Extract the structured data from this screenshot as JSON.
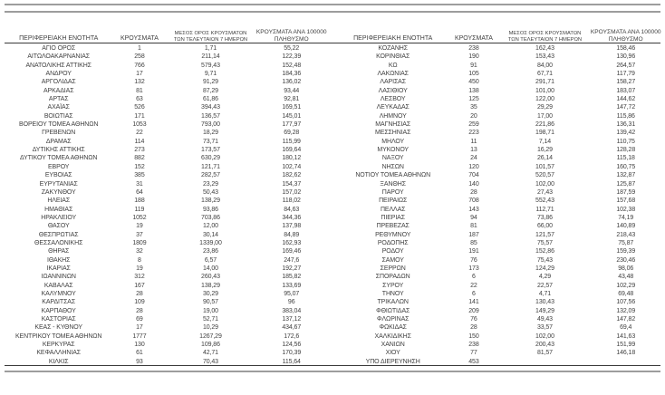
{
  "colors": {
    "text": "#3f3f3f",
    "rule_gray": "#9d9d9d",
    "rule_dark": "#3a3a3a",
    "background": "#ffffff"
  },
  "columns": {
    "region": "ΠΕΡΙΦΕΡΕΙΑΚΗ ΕΝΟΤΗΤΑ",
    "cases": "ΚΡΟΥΣΜΑΤΑ",
    "avg7_line1": "ΜΕΣΟΣ ΟΡΟΣ ΚΡΟΥΣΜΑΤΩΝ",
    "avg7_line2": "ΤΩΝ ΤΕΛΕΥΤΑΙΩΝ 7 ΗΜΕΡΩΝ",
    "per100k_line1": "ΚΡΟΥΣΜΑΤΑ ΑΝΑ 100000",
    "per100k_line2": "ΠΛΗΘΥΣΜΟ"
  },
  "tables": [
    {
      "rows": [
        [
          "ΑΓΙΟ ΟΡΟΣ",
          "1",
          "1,71",
          "55,22"
        ],
        [
          "ΑΙΤΩΛΟΑΚΑΡΝΑΝΙΑΣ",
          "258",
          "211,14",
          "122,39"
        ],
        [
          "ΑΝΑΤΟΛΙΚΗΣ ΑΤΤΙΚΗΣ",
          "766",
          "579,43",
          "152,48"
        ],
        [
          "ΑΝΔΡΟΥ",
          "17",
          "9,71",
          "184,36"
        ],
        [
          "ΑΡΓΟΛΙΔΑΣ",
          "132",
          "91,29",
          "136,02"
        ],
        [
          "ΑΡΚΑΔΙΑΣ",
          "81",
          "87,29",
          "93,44"
        ],
        [
          "ΑΡΤΑΣ",
          "63",
          "61,86",
          "92,81"
        ],
        [
          "ΑΧΑΪΑΣ",
          "526",
          "394,43",
          "169,51"
        ],
        [
          "ΒΟΙΩΤΙΑΣ",
          "171",
          "136,57",
          "145,01"
        ],
        [
          "ΒΟΡΕΙΟΥ ΤΟΜΕΑ ΑΘΗΝΩΝ",
          "1053",
          "793,00",
          "177,97"
        ],
        [
          "ΓΡΕΒΕΝΩΝ",
          "22",
          "18,29",
          "69,28"
        ],
        [
          "ΔΡΑΜΑΣ",
          "114",
          "73,71",
          "115,99"
        ],
        [
          "ΔΥΤΙΚΗΣ ΑΤΤΙΚΗΣ",
          "273",
          "173,57",
          "169,64"
        ],
        [
          "ΔΥΤΙΚΟΥ ΤΟΜΕΑ ΑΘΗΝΩΝ",
          "882",
          "630,29",
          "180,12"
        ],
        [
          "ΕΒΡΟΥ",
          "152",
          "121,71",
          "102,74"
        ],
        [
          "ΕΥΒΟΙΑΣ",
          "385",
          "282,57",
          "182,62"
        ],
        [
          "ΕΥΡΥΤΑΝΙΑΣ",
          "31",
          "23,29",
          "154,37"
        ],
        [
          "ΖΑΚΥΝΘΟΥ",
          "64",
          "50,43",
          "157,02"
        ],
        [
          "ΗΛΕΙΑΣ",
          "188",
          "138,29",
          "118,02"
        ],
        [
          "ΗΜΑΘΙΑΣ",
          "119",
          "93,86",
          "84,63"
        ],
        [
          "ΗΡΑΚΛΕΙΟΥ",
          "1052",
          "703,86",
          "344,36"
        ],
        [
          "ΘΑΣΟΥ",
          "19",
          "12,00",
          "137,98"
        ],
        [
          "ΘΕΣΠΡΩΤΙΑΣ",
          "37",
          "30,14",
          "84,89"
        ],
        [
          "ΘΕΣΣΑΛΟΝΙΚΗΣ",
          "1809",
          "1339,00",
          "162,93"
        ],
        [
          "ΘΗΡΑΣ",
          "32",
          "23,86",
          "169,46"
        ],
        [
          "ΙΘΑΚΗΣ",
          "8",
          "6,57",
          "247,6"
        ],
        [
          "ΙΚΑΡΙΑΣ",
          "19",
          "14,00",
          "192,27"
        ],
        [
          "ΙΩΑΝΝΙΝΩΝ",
          "312",
          "260,43",
          "185,82"
        ],
        [
          "ΚΑΒΑΛΑΣ",
          "167",
          "138,29",
          "133,69"
        ],
        [
          "ΚΑΛΥΜΝΟΥ",
          "28",
          "30,29",
          "95,07"
        ],
        [
          "ΚΑΡΔΙΤΣΑΣ",
          "109",
          "90,57",
          "96"
        ],
        [
          "ΚΑΡΠΑΘΟΥ",
          "28",
          "19,00",
          "383,04"
        ],
        [
          "ΚΑΣΤΟΡΙΑΣ",
          "69",
          "52,71",
          "137,12"
        ],
        [
          "ΚΕΑΣ - ΚΥΘΝΟΥ",
          "17",
          "10,29",
          "434,67"
        ],
        [
          "ΚΕΝΤΡΙΚΟΥ ΤΟΜΕΑ ΑΘΗΝΩΝ",
          "1777",
          "1267,29",
          "172,6"
        ],
        [
          "ΚΕΡΚΥΡΑΣ",
          "130",
          "109,86",
          "124,56"
        ],
        [
          "ΚΕΦΑΛΛΗΝΙΑΣ",
          "61",
          "42,71",
          "170,39"
        ],
        [
          "ΚΙΛΚΙΣ",
          "93",
          "70,43",
          "115,64"
        ]
      ]
    },
    {
      "rows": [
        [
          "ΚΟΖΑΝΗΣ",
          "238",
          "162,43",
          "158,46"
        ],
        [
          "ΚΟΡΙΝΘΙΑΣ",
          "190",
          "153,43",
          "130,96"
        ],
        [
          "ΚΩ",
          "91",
          "84,00",
          "264,57"
        ],
        [
          "ΛΑΚΩΝΙΑΣ",
          "105",
          "67,71",
          "117,79"
        ],
        [
          "ΛΑΡΙΣΑΣ",
          "450",
          "291,71",
          "158,27"
        ],
        [
          "ΛΑΣΙΘΙΟΥ",
          "138",
          "101,00",
          "183,07"
        ],
        [
          "ΛΕΣΒΟΥ",
          "125",
          "122,00",
          "144,62"
        ],
        [
          "ΛΕΥΚΑΔΑΣ",
          "35",
          "29,29",
          "147,72"
        ],
        [
          "ΛΗΜΝΟΥ",
          "20",
          "17,00",
          "115,86"
        ],
        [
          "ΜΑΓΝΗΣΙΑΣ",
          "259",
          "221,86",
          "136,31"
        ],
        [
          "ΜΕΣΣΗΝΙΑΣ",
          "223",
          "198,71",
          "139,42"
        ],
        [
          "ΜΗΛΟΥ",
          "11",
          "7,14",
          "110,75"
        ],
        [
          "ΜΥΚΟΝΟΥ",
          "13",
          "16,29",
          "128,28"
        ],
        [
          "ΝΑΞΟΥ",
          "24",
          "26,14",
          "115,18"
        ],
        [
          "ΝΗΣΩΝ",
          "120",
          "101,57",
          "160,75"
        ],
        [
          "ΝΟΤΙΟΥ ΤΟΜΕΑ ΑΘΗΝΩΝ",
          "704",
          "520,57",
          "132,87"
        ],
        [
          "ΞΑΝΘΗΣ",
          "140",
          "102,00",
          "125,87"
        ],
        [
          "ΠΑΡΟΥ",
          "28",
          "27,43",
          "187,59"
        ],
        [
          "ΠΕΙΡΑΙΩΣ",
          "708",
          "552,43",
          "157,68"
        ],
        [
          "ΠΕΛΛΑΣ",
          "143",
          "112,71",
          "102,38"
        ],
        [
          "ΠΙΕΡΙΑΣ",
          "94",
          "73,86",
          "74,19"
        ],
        [
          "ΠΡΕΒΕΖΑΣ",
          "81",
          "66,00",
          "140,89"
        ],
        [
          "ΡΕΘΥΜΝΟΥ",
          "187",
          "121,57",
          "218,43"
        ],
        [
          "ΡΟΔΟΠΗΣ",
          "85",
          "75,57",
          "75,87"
        ],
        [
          "ΡΟΔΟΥ",
          "191",
          "152,86",
          "159,39"
        ],
        [
          "ΣΑΜΟΥ",
          "76",
          "75,43",
          "230,46"
        ],
        [
          "ΣΕΡΡΩΝ",
          "173",
          "124,29",
          "98,06"
        ],
        [
          "ΣΠΟΡΑΔΩΝ",
          "6",
          "4,29",
          "43,48"
        ],
        [
          "ΣΥΡΟΥ",
          "22",
          "22,57",
          "102,29"
        ],
        [
          "ΤΗΝΟΥ",
          "6",
          "4,71",
          "69,48"
        ],
        [
          "ΤΡΙΚΑΛΩΝ",
          "141",
          "130,43",
          "107,56"
        ],
        [
          "ΦΘΙΩΤΙΔΑΣ",
          "209",
          "149,29",
          "132,09"
        ],
        [
          "ΦΛΩΡΙΝΑΣ",
          "76",
          "49,43",
          "147,82"
        ],
        [
          "ΦΩΚΙΔΑΣ",
          "28",
          "33,57",
          "69,4"
        ],
        [
          "ΧΑΛΚΙΔΙΚΗΣ",
          "150",
          "102,00",
          "141,63"
        ],
        [
          "ΧΑΝΙΩΝ",
          "238",
          "200,43",
          "151,99"
        ],
        [
          "ΧΙΟΥ",
          "77",
          "81,57",
          "146,18"
        ],
        [
          "ΥΠΟ ΔΙΕΡΕΥΝΗΣΗ",
          "453",
          "",
          ""
        ]
      ]
    }
  ]
}
